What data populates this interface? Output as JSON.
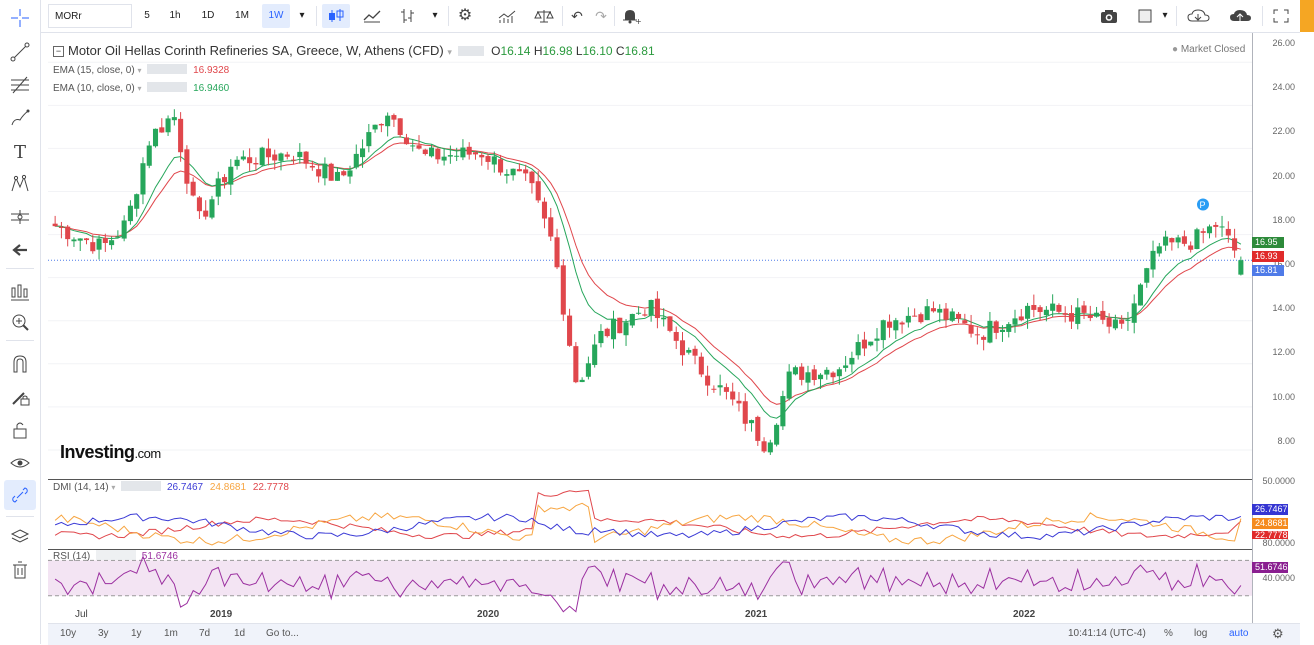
{
  "toolbar": {
    "symbol": "MORr",
    "intervals": [
      "5",
      "1h",
      "1D",
      "1M",
      "1W"
    ],
    "active_interval": "1W"
  },
  "legend": {
    "title": "Motor Oil Hellas Corinth Refineries SA, Greece, W, Athens (CFD)",
    "open_label": "O",
    "open": "16.14",
    "high_label": "H",
    "high": "16.98",
    "low_label": "L",
    "low": "16.10",
    "close_label": "C",
    "close": "16.81",
    "market_status": "Market Closed",
    "ema15_label": "EMA (15, close, 0)",
    "ema15_value": "16.9328",
    "ema10_label": "EMA (10, close, 0)",
    "ema10_value": "16.9460",
    "dmi_label": "DMI (14, 14)",
    "dmi_plus": "26.7467",
    "dmi_adx": "24.8681",
    "dmi_minus": "22.7778",
    "rsi_label": "RSI (14)",
    "rsi_value": "51.6746"
  },
  "watermark": {
    "brand": "Investing",
    "suffix": ".com"
  },
  "price_axis": {
    "labels": [
      "26.00",
      "24.00",
      "22.00",
      "20.00",
      "18.00",
      "16.00",
      "14.00",
      "12.00",
      "10.00",
      "8.00"
    ],
    "tags": {
      "ema10": "16.95",
      "ema15": "16.93",
      "close": "16.81"
    }
  },
  "dmi_axis": {
    "labels": [
      "50.0000"
    ],
    "tags": [
      "26.7467",
      "24.8681",
      "22.7778"
    ]
  },
  "rsi_axis": {
    "labels": [
      "80.0000",
      "40.0000"
    ],
    "tag": "51.6746"
  },
  "time_axis": {
    "labels": [
      "Jul",
      "2019",
      "2020",
      "2021",
      "2022"
    ]
  },
  "bottom_bar": {
    "ranges": [
      "10y",
      "3y",
      "1y",
      "1m",
      "7d",
      "1d"
    ],
    "goto": "Go to...",
    "clock": "10:41:14 (UTC-4)",
    "percent": "%",
    "log": "log",
    "auto": "auto"
  },
  "colors": {
    "up": "#26a65b",
    "down": "#e0474c",
    "ema15": "#e0474c",
    "ema10": "#26a65b",
    "dmi_plus": "#3b3bd6",
    "dmi_adx": "#f7a541",
    "dmi_minus": "#e0474c",
    "rsi": "#9b30a0",
    "accent": "#2962ff"
  },
  "chart_data": {
    "type": "candlestick",
    "title": "Motor Oil Hellas Corinth Refineries SA, Greece, W, Athens (CFD)",
    "ylim": [
      7,
      26.5
    ],
    "x_labels": [
      "Jul",
      "2019",
      "2020",
      "2021",
      "2022"
    ],
    "anchors": [
      {
        "t": 0,
        "v": 18.4
      },
      {
        "t": 0.04,
        "v": 17.4
      },
      {
        "t": 0.06,
        "v": 18.5
      },
      {
        "t": 0.08,
        "v": 22.5
      },
      {
        "t": 0.1,
        "v": 23.6
      },
      {
        "t": 0.12,
        "v": 18.5
      },
      {
        "t": 0.15,
        "v": 21.4
      },
      {
        "t": 0.2,
        "v": 21.8
      },
      {
        "t": 0.24,
        "v": 20.5
      },
      {
        "t": 0.28,
        "v": 23.8
      },
      {
        "t": 0.31,
        "v": 21.6
      },
      {
        "t": 0.36,
        "v": 21.8
      },
      {
        "t": 0.4,
        "v": 20.3
      },
      {
        "t": 0.42,
        "v": 17.5
      },
      {
        "t": 0.44,
        "v": 11.0
      },
      {
        "t": 0.46,
        "v": 13.3
      },
      {
        "t": 0.5,
        "v": 14.7
      },
      {
        "t": 0.54,
        "v": 12.0
      },
      {
        "t": 0.57,
        "v": 10.3
      },
      {
        "t": 0.6,
        "v": 8.2
      },
      {
        "t": 0.62,
        "v": 11.5
      },
      {
        "t": 0.66,
        "v": 11.8
      },
      {
        "t": 0.7,
        "v": 14.0
      },
      {
        "t": 0.74,
        "v": 14.5
      },
      {
        "t": 0.78,
        "v": 13.4
      },
      {
        "t": 0.82,
        "v": 14.6
      },
      {
        "t": 0.87,
        "v": 14.2
      },
      {
        "t": 0.9,
        "v": 13.5
      },
      {
        "t": 0.93,
        "v": 17.4
      },
      {
        "t": 0.96,
        "v": 17.7
      },
      {
        "t": 0.98,
        "v": 18.5
      },
      {
        "t": 1.0,
        "v": 16.81
      }
    ],
    "last": {
      "open": 16.14,
      "high": 16.98,
      "low": 16.1,
      "close": 16.81
    },
    "ema15_last": 16.9328,
    "ema10_last": 16.946
  }
}
